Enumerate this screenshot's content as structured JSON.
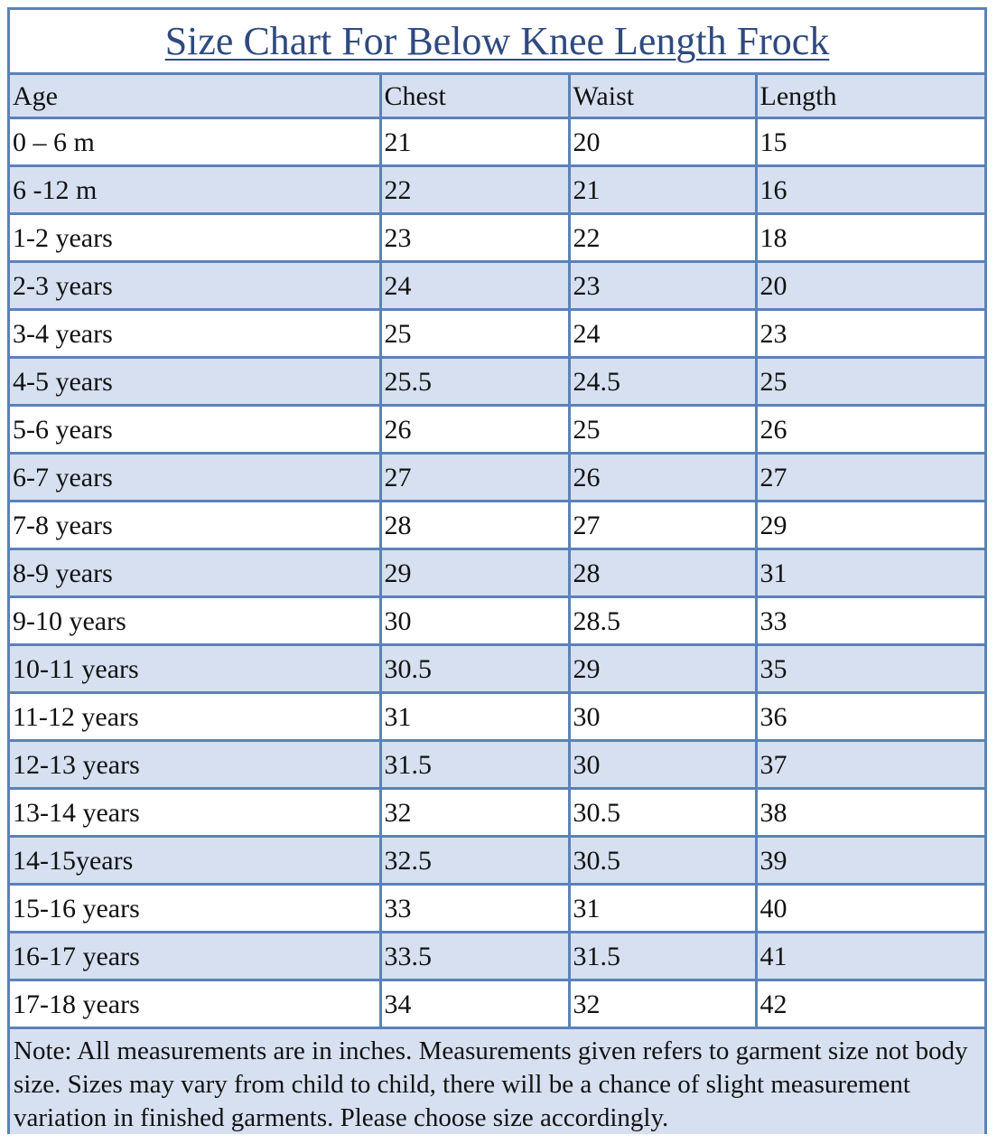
{
  "title": "Size Chart For Below Knee Length Frock",
  "headers": {
    "age": "Age",
    "chest": "Chest",
    "waist": "Waist",
    "length": "Length"
  },
  "rows": [
    {
      "age": "0 – 6 m",
      "chest": "21",
      "waist": "20",
      "length": "15"
    },
    {
      "age": "6 -12 m",
      "chest": "22",
      "waist": "21",
      "length": "16"
    },
    {
      "age": "1-2 years",
      "chest": "23",
      "waist": "22",
      "length": "18"
    },
    {
      "age": "2-3 years",
      "chest": "24",
      "waist": "23",
      "length": "20"
    },
    {
      "age": "3-4 years",
      "chest": "25",
      "waist": "24",
      "length": "23"
    },
    {
      "age": "4-5 years",
      "chest": "25.5",
      "waist": "24.5",
      "length": "25"
    },
    {
      "age": "5-6 years",
      "chest": "26",
      "waist": "25",
      "length": "26"
    },
    {
      "age": "6-7 years",
      "chest": "27",
      "waist": "26",
      "length": "27"
    },
    {
      "age": "7-8 years",
      "chest": "28",
      "waist": "27",
      "length": "29"
    },
    {
      "age": "8-9 years",
      "chest": "29",
      "waist": "28",
      "length": "31"
    },
    {
      "age": "9-10 years",
      "chest": "30",
      "waist": "28.5",
      "length": "33"
    },
    {
      "age": "10-11 years",
      "chest": "30.5",
      "waist": "29",
      "length": "35"
    },
    {
      "age": "11-12 years",
      "chest": "31",
      "waist": "30",
      "length": "36"
    },
    {
      "age": "12-13 years",
      "chest": "31.5",
      "waist": "30",
      "length": "37"
    },
    {
      "age": "13-14 years",
      "chest": "32",
      "waist": "30.5",
      "length": "38"
    },
    {
      "age": "14-15years",
      "chest": "32.5",
      "waist": "30.5",
      "length": "39"
    },
    {
      "age": "15-16 years",
      "chest": "33",
      "waist": "31",
      "length": "40"
    },
    {
      "age": "16-17 years",
      "chest": "33.5",
      "waist": "31.5",
      "length": "41"
    },
    {
      "age": "17-18 years",
      "chest": "34",
      "waist": "32",
      "length": "42"
    }
  ],
  "note": "Note: All measurements are in inches. Measurements given refers to garment size not body size. Sizes may vary from child to child, there will be a chance of slight measurement variation in finished garments. Please choose size accordingly.",
  "colors": {
    "border": "#5b82b8",
    "band": "#d6e0f0",
    "title": "#2f4a7f"
  }
}
